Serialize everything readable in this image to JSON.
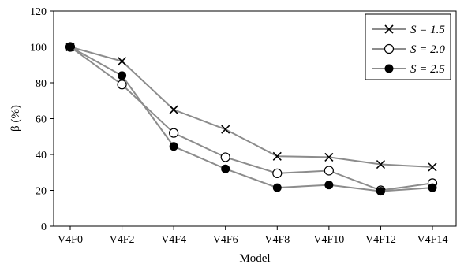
{
  "chart_data": {
    "type": "line",
    "categories": [
      "V4F0",
      "V4F2",
      "V4F4",
      "V4F6",
      "V4F8",
      "V4F10",
      "V4F12",
      "V4F14"
    ],
    "series": [
      {
        "name": "S = 1.5",
        "marker": "x",
        "values": [
          100,
          92,
          65,
          54,
          39,
          38.5,
          34.5,
          33
        ]
      },
      {
        "name": "S = 2.0",
        "marker": "open-circle",
        "values": [
          100,
          79,
          52,
          38.5,
          29.5,
          31,
          20,
          24
        ]
      },
      {
        "name": "S = 2.5",
        "marker": "filled-circle",
        "values": [
          100,
          84,
          44.5,
          32,
          21.5,
          23,
          19.5,
          21.5
        ]
      }
    ],
    "xlabel": "Model",
    "ylabel": "β (%)",
    "ylim": [
      0,
      120
    ],
    "yticks": [
      0,
      20,
      40,
      60,
      80,
      100,
      120
    ],
    "grid": false,
    "legend_position": "top-right",
    "line_color": "#8c8c8c",
    "marker_color": "#000000"
  }
}
